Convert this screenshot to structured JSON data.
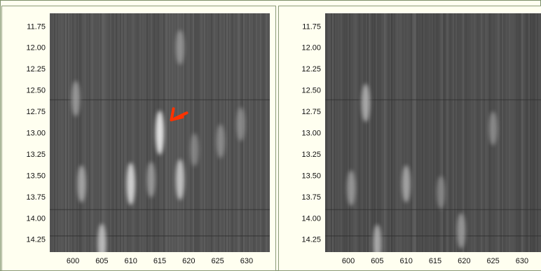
{
  "chart_data": [
    {
      "type": "heatmap",
      "title": "",
      "xlabel": "",
      "ylabel": "",
      "x_ticks": [
        "600",
        "605",
        "610",
        "615",
        "620",
        "625",
        "630"
      ],
      "y_ticks": [
        "11.75",
        "12.00",
        "12.25",
        "12.50",
        "12.75",
        "13.00",
        "13.25",
        "13.50",
        "13.75",
        "14.00",
        "14.25"
      ],
      "xlim": [
        596,
        634
      ],
      "ylim": [
        11.6,
        14.4
      ],
      "colormap": "grayscale",
      "background_color": "#575757",
      "spots": [
        {
          "x": 615,
          "y": 13.0,
          "intensity": 0.95
        },
        {
          "x": 610,
          "y": 13.6,
          "intensity": 0.85
        },
        {
          "x": 618.5,
          "y": 13.55,
          "intensity": 0.75
        },
        {
          "x": 601.5,
          "y": 13.6,
          "intensity": 0.55
        },
        {
          "x": 613.5,
          "y": 13.55,
          "intensity": 0.45
        },
        {
          "x": 605,
          "y": 14.3,
          "intensity": 0.7
        },
        {
          "x": 618.5,
          "y": 12.0,
          "intensity": 0.4
        },
        {
          "x": 600.5,
          "y": 12.6,
          "intensity": 0.45
        },
        {
          "x": 629,
          "y": 12.9,
          "intensity": 0.35
        },
        {
          "x": 625.5,
          "y": 13.1,
          "intensity": 0.35
        },
        {
          "x": 621,
          "y": 13.2,
          "intensity": 0.3
        }
      ],
      "annotation": {
        "type": "arrow",
        "color": "#ff3300",
        "points_to": {
          "x": 617,
          "y": 12.85
        }
      }
    },
    {
      "type": "heatmap",
      "title": "",
      "xlabel": "",
      "ylabel": "",
      "x_ticks": [
        "600",
        "605",
        "610",
        "615",
        "620",
        "625",
        "630"
      ],
      "y_ticks": [
        "11.75",
        "12.00",
        "12.25",
        "12.50",
        "12.75",
        "13.00",
        "13.25",
        "13.50",
        "13.75",
        "14.00",
        "14.25"
      ],
      "xlim": [
        596,
        634
      ],
      "ylim": [
        11.6,
        14.4
      ],
      "colormap": "grayscale",
      "background_color": "#4e4e4e",
      "spots": [
        {
          "x": 603,
          "y": 12.65,
          "intensity": 0.6
        },
        {
          "x": 610,
          "y": 13.6,
          "intensity": 0.55
        },
        {
          "x": 600.5,
          "y": 13.65,
          "intensity": 0.45
        },
        {
          "x": 605,
          "y": 14.3,
          "intensity": 0.6
        },
        {
          "x": 619.5,
          "y": 14.15,
          "intensity": 0.45
        },
        {
          "x": 625,
          "y": 12.95,
          "intensity": 0.35
        },
        {
          "x": 616,
          "y": 13.7,
          "intensity": 0.3
        }
      ]
    }
  ]
}
